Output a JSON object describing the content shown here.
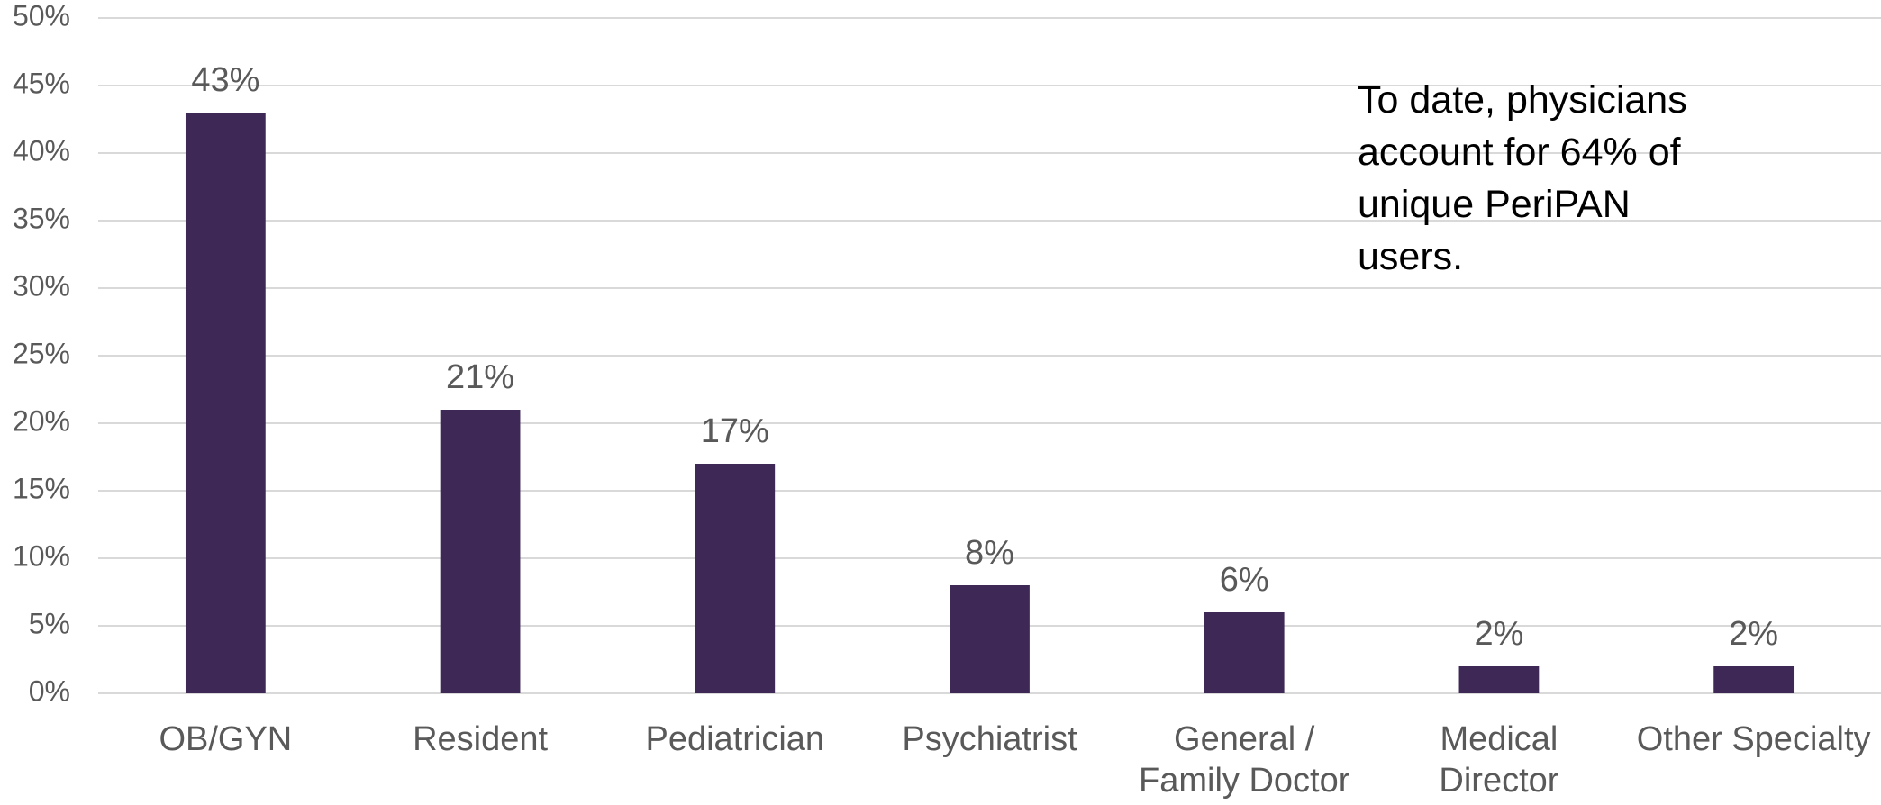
{
  "chart_data": {
    "type": "bar",
    "categories": [
      "OB/GYN",
      "Resident",
      "Pediatrician",
      "Psychiatrist",
      "General / Family Doctor",
      "Medical Director",
      "Other Specialty"
    ],
    "values": [
      43,
      21,
      17,
      8,
      6,
      2,
      2
    ],
    "value_labels": [
      "43%",
      "21%",
      "17%",
      "8%",
      "6%",
      "2%",
      "2%"
    ],
    "color": "#3e2856",
    "ylim": [
      0,
      50
    ],
    "yticks": [
      {
        "value": 0,
        "label": "0%"
      },
      {
        "value": 5,
        "label": "5%"
      },
      {
        "value": 10,
        "label": "10%"
      },
      {
        "value": 15,
        "label": "15%"
      },
      {
        "value": 20,
        "label": "20%"
      },
      {
        "value": 25,
        "label": "25%"
      },
      {
        "value": 30,
        "label": "30%"
      },
      {
        "value": 35,
        "label": "35%"
      },
      {
        "value": 40,
        "label": "40%"
      },
      {
        "value": 45,
        "label": "45%"
      },
      {
        "value": 50,
        "label": "50%"
      }
    ],
    "grid": true,
    "annotation": "To date, physicians account for 64% of unique PeriPAN users."
  }
}
